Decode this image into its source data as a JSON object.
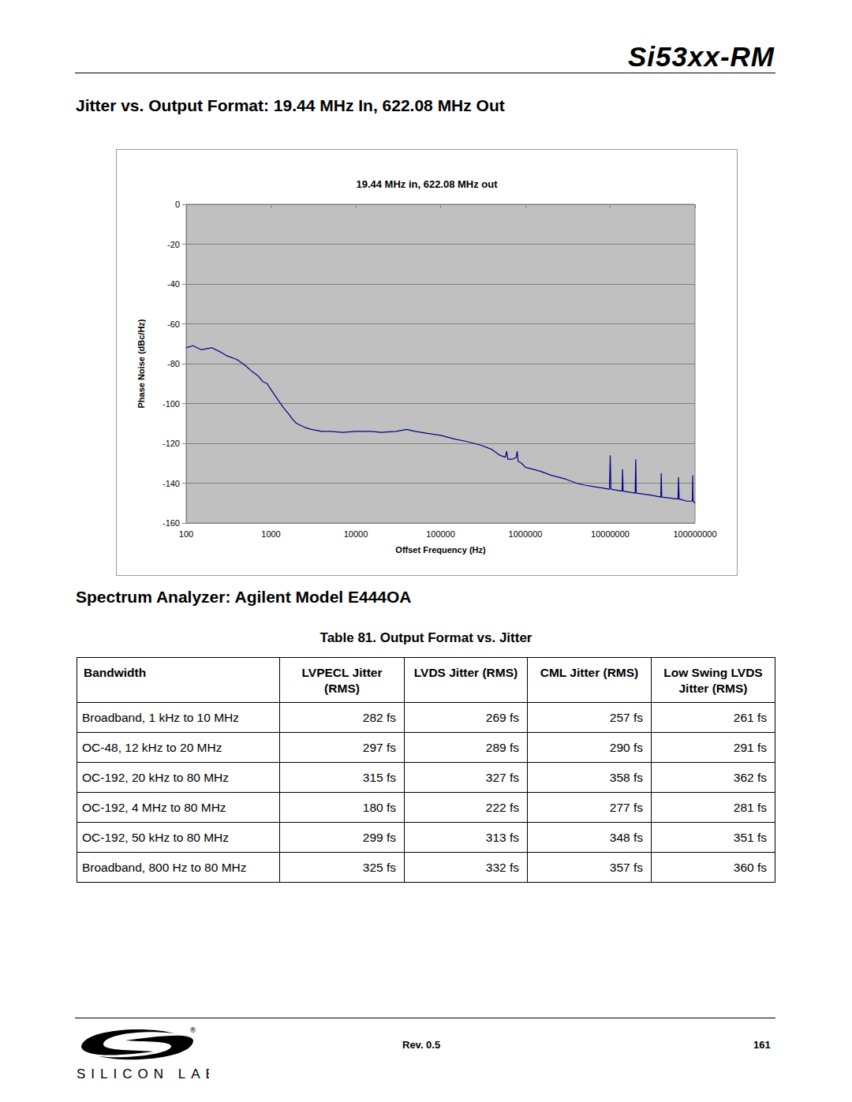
{
  "header": {
    "title": "Si53xx-RM"
  },
  "heading": "Jitter vs. Output Format: 19.44 MHz In, 622.08 MHz Out",
  "chart_data": {
    "type": "line",
    "title": "19.44 MHz in, 622.08 MHz out",
    "x_label": "Offset Frequency (Hz)",
    "y_label": "Phase Noise (dBc/Hz)",
    "log": "x",
    "grid": true,
    "color": "#00008b",
    "xlim": [
      100,
      100000000
    ],
    "ylim": [
      -160,
      0
    ],
    "xticks": [
      100,
      1000,
      10000,
      100000,
      1000000,
      10000000,
      100000000
    ],
    "yticks": [
      -160,
      -140,
      -120,
      -100,
      -80,
      -60,
      -40,
      -20,
      0
    ],
    "x": [
      100,
      120,
      150,
      200,
      250,
      300,
      400,
      500,
      600,
      700,
      800,
      900,
      1000,
      1200,
      1400,
      1600,
      1800,
      2000,
      2500,
      3000,
      4000,
      5000,
      7000,
      10000,
      15000,
      20000,
      30000,
      40000,
      50000,
      70000,
      100000,
      150000,
      200000,
      300000,
      400000,
      500000,
      580000,
      600000,
      620000,
      700000,
      780000,
      800000,
      820000,
      900000,
      1000000,
      1500000,
      2000000,
      3000000,
      4000000,
      5000000,
      7000000,
      9800000,
      10000000,
      10200000,
      13800000,
      14000000,
      14200000,
      19700000,
      20000000,
      20300000,
      30000000,
      39500000,
      40000000,
      40500000,
      63000000,
      64000000,
      65000000,
      80000000,
      93000000,
      94000000,
      95000000,
      100000000
    ],
    "values": [
      -72,
      -71,
      -73,
      -72,
      -74,
      -76,
      -78,
      -81,
      -84,
      -86,
      -89,
      -90,
      -93,
      -98,
      -102,
      -105,
      -108,
      -110,
      -112,
      -113,
      -114,
      -114,
      -114.5,
      -114,
      -114,
      -114.5,
      -114,
      -113,
      -114,
      -115,
      -116,
      -118,
      -119,
      -121,
      -123,
      -126,
      -127,
      -124,
      -128,
      -128,
      -127,
      -124,
      -129,
      -130,
      -132,
      -134,
      -136,
      -138,
      -140,
      -141,
      -142,
      -143,
      -126,
      -143,
      -144,
      -133,
      -144,
      -145,
      -128,
      -145,
      -146,
      -147,
      -135,
      -147,
      -148,
      -137,
      -148,
      -149,
      -149,
      -136,
      -149,
      -150
    ]
  },
  "subheading": "Spectrum Analyzer: Agilent Model E444OA",
  "table": {
    "caption": "Table 81.  Output Format vs. Jitter",
    "columns": [
      "Bandwidth",
      "LVPECL Jitter (RMS)",
      "LVDS Jitter (RMS)",
      "CML Jitter (RMS)",
      "Low Swing LVDS Jitter (RMS)"
    ],
    "rows": [
      [
        "Broadband, 1 kHz to 10 MHz",
        "282 fs",
        "269 fs",
        "257 fs",
        "261 fs"
      ],
      [
        "OC-48, 12 kHz to 20 MHz",
        "297 fs",
        "289 fs",
        "290 fs",
        "291 fs"
      ],
      [
        "OC-192, 20 kHz to 80 MHz",
        "315 fs",
        "327 fs",
        "358 fs",
        "362 fs"
      ],
      [
        "OC-192, 4 MHz to 80 MHz",
        "180 fs",
        "222 fs",
        "277 fs",
        "281 fs"
      ],
      [
        "OC-192, 50 kHz to 80 MHz",
        "299 fs",
        "313 fs",
        "348 fs",
        "351 fs"
      ],
      [
        "Broadband, 800 Hz to 80 MHz",
        "325 fs",
        "332 fs",
        "357 fs",
        "360 fs"
      ]
    ]
  },
  "footer": {
    "revision": "Rev. 0.5",
    "page": "161",
    "logo": "SILICON LABS",
    "logo_mark": "®"
  }
}
